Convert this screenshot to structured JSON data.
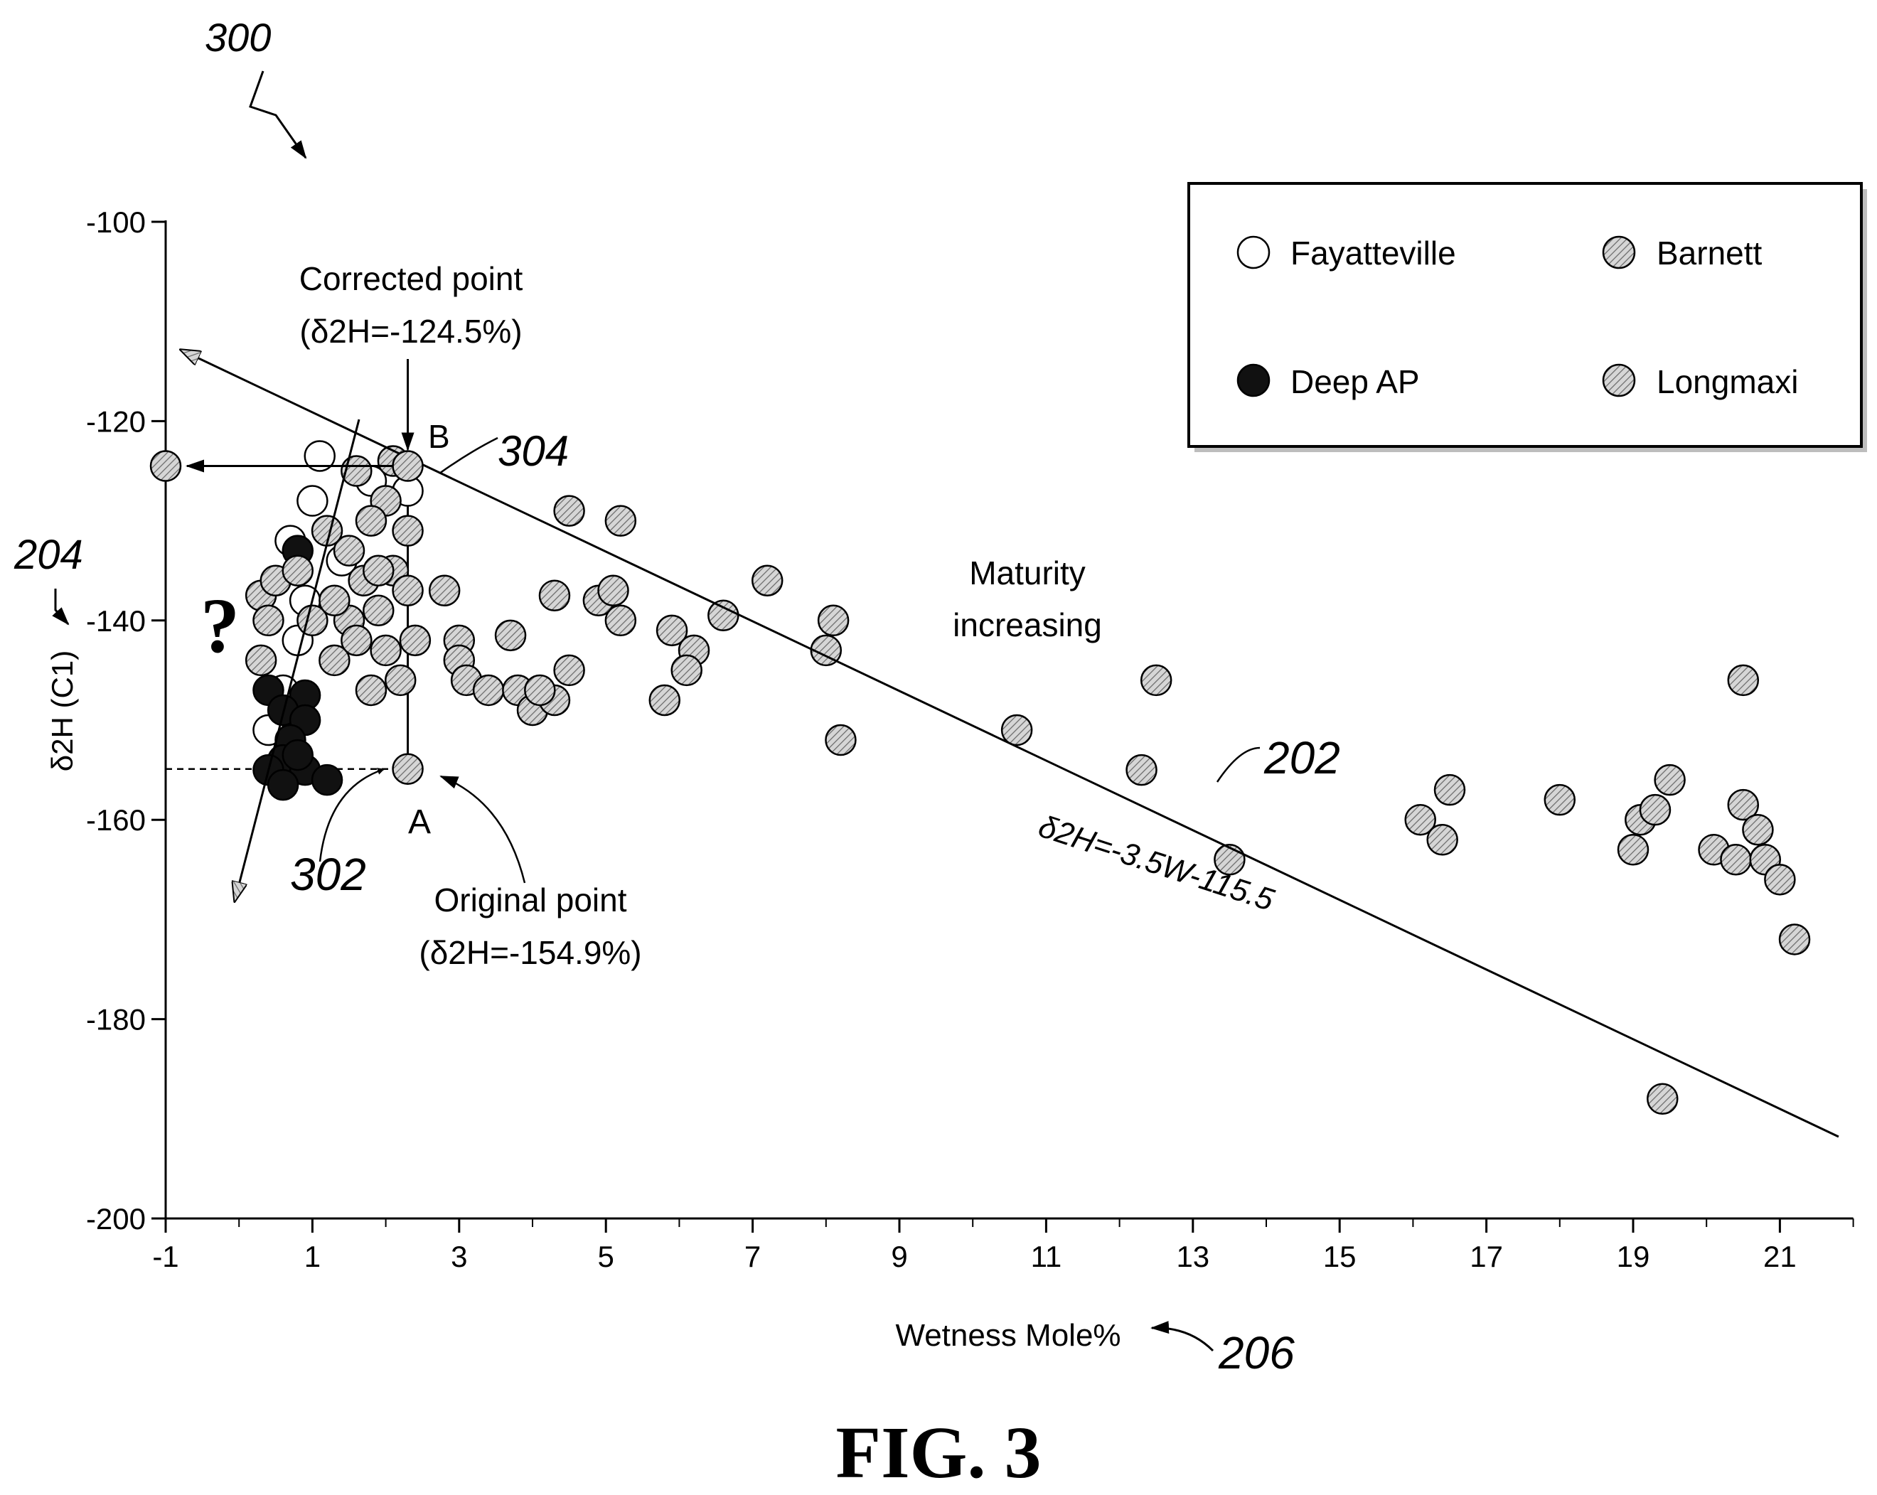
{
  "figure": {
    "ref_300": "300",
    "caption": "FIG. 3"
  },
  "chart_data": {
    "type": "scatter",
    "xlabel": "Wetness Mole%",
    "ylabel": "δ2H (C1)",
    "xlim": [
      -1,
      22
    ],
    "ylim": [
      -200,
      -100
    ],
    "x_ticks": [
      -1,
      1,
      3,
      5,
      7,
      9,
      11,
      13,
      15,
      17,
      19,
      21
    ],
    "y_ticks": [
      -100,
      -120,
      -140,
      -160,
      -180,
      -200
    ],
    "grid": false,
    "legend_position": "top-right",
    "legend": [
      {
        "name": "Fayatteville",
        "style": "open"
      },
      {
        "name": "Barnett",
        "style": "hatched"
      },
      {
        "name": "Deep AP",
        "style": "solid"
      },
      {
        "name": "Longmaxi",
        "style": "hatched"
      }
    ],
    "series": [
      {
        "name": "Fayatteville",
        "style": "open",
        "points": [
          [
            1.1,
            -123.5
          ],
          [
            1.8,
            -126
          ],
          [
            2.3,
            -127
          ],
          [
            0.7,
            -132
          ],
          [
            0.9,
            -138
          ],
          [
            0.8,
            -142
          ],
          [
            0.6,
            -147
          ],
          [
            0.4,
            -151
          ],
          [
            1.4,
            -134
          ],
          [
            1.0,
            -128
          ]
        ]
      },
      {
        "name": "Deep AP",
        "style": "solid",
        "points": [
          [
            0.8,
            -133
          ],
          [
            0.4,
            -147
          ],
          [
            0.9,
            -147.5
          ],
          [
            0.6,
            -149
          ],
          [
            0.9,
            -150
          ],
          [
            0.7,
            -152
          ],
          [
            0.6,
            -154
          ],
          [
            0.9,
            -155
          ],
          [
            0.4,
            -155
          ],
          [
            1.2,
            -156
          ],
          [
            0.6,
            -156.5
          ],
          [
            0.8,
            -153.5
          ]
        ]
      },
      {
        "name": "Barnett + Longmaxi",
        "style": "hatched",
        "points": [
          [
            0.3,
            -137.5
          ],
          [
            0.4,
            -140
          ],
          [
            0.5,
            -136
          ],
          [
            0.3,
            -144
          ],
          [
            0.8,
            -135
          ],
          [
            1.0,
            -140
          ],
          [
            1.3,
            -144
          ],
          [
            1.5,
            -140
          ],
          [
            1.7,
            -136
          ],
          [
            1.6,
            -142
          ],
          [
            1.3,
            -138
          ],
          [
            1.9,
            -139
          ],
          [
            2.1,
            -135
          ],
          [
            2.3,
            -137
          ],
          [
            2.0,
            -143
          ],
          [
            2.2,
            -146
          ],
          [
            2.4,
            -142
          ],
          [
            1.8,
            -147
          ],
          [
            1.5,
            -133
          ],
          [
            1.2,
            -131
          ],
          [
            1.6,
            -125
          ],
          [
            2.0,
            -128
          ],
          [
            1.8,
            -130
          ],
          [
            2.1,
            -124
          ],
          [
            2.3,
            -131
          ],
          [
            1.9,
            -135
          ],
          [
            2.8,
            -137
          ],
          [
            3.0,
            -142
          ],
          [
            3.0,
            -144
          ],
          [
            3.1,
            -146
          ],
          [
            3.4,
            -147
          ],
          [
            3.8,
            -147
          ],
          [
            4.0,
            -149
          ],
          [
            4.3,
            -148
          ],
          [
            4.5,
            -145
          ],
          [
            4.1,
            -147
          ],
          [
            3.7,
            -141.5
          ],
          [
            4.5,
            -129
          ],
          [
            4.3,
            -137.5
          ],
          [
            4.9,
            -138
          ],
          [
            5.1,
            -137
          ],
          [
            5.2,
            -140
          ],
          [
            5.2,
            -130
          ],
          [
            5.8,
            -148
          ],
          [
            5.9,
            -141
          ],
          [
            6.2,
            -143
          ],
          [
            6.1,
            -145
          ],
          [
            6.6,
            -139.5
          ],
          [
            7.2,
            -136
          ],
          [
            8.0,
            -143
          ],
          [
            8.1,
            -140
          ],
          [
            8.2,
            -152
          ],
          [
            10.6,
            -151
          ],
          [
            12.3,
            -155
          ],
          [
            12.5,
            -146
          ],
          [
            13.5,
            -164
          ],
          [
            16.1,
            -160
          ],
          [
            16.4,
            -162
          ],
          [
            16.5,
            -157
          ],
          [
            18.0,
            -158
          ],
          [
            19.0,
            -163
          ],
          [
            19.1,
            -160
          ],
          [
            19.3,
            -159
          ],
          [
            19.4,
            -188
          ],
          [
            19.5,
            -156
          ],
          [
            20.1,
            -163
          ],
          [
            20.4,
            -164
          ],
          [
            20.5,
            -146
          ],
          [
            20.5,
            -158.5
          ],
          [
            20.7,
            -161
          ],
          [
            20.8,
            -164
          ],
          [
            21.0,
            -166
          ],
          [
            21.2,
            -172
          ]
        ]
      }
    ],
    "trend_line": {
      "label": "δ2H=-3.5W-115.5",
      "ref": "202",
      "slope": -3.5,
      "intercept": -115.5,
      "x_start": -0.7,
      "x_end": 21.8
    },
    "annotations": {
      "corrected_point": {
        "line1": "Corrected point",
        "line2": "(δ2H=-124.5%)",
        "letter": "B",
        "ref": "304",
        "x": 2.3,
        "y": -124.5
      },
      "original_point": {
        "line1": "Original point",
        "line2": "(δ2H=-154.9%)",
        "letter": "A",
        "ref": "302",
        "x": 2.3,
        "y": -154.9
      },
      "maturity": {
        "line1": "Maturity",
        "line2": "increasing"
      },
      "question_mark": "?",
      "y_axis_ref": "204",
      "x_axis_ref": "206"
    }
  }
}
